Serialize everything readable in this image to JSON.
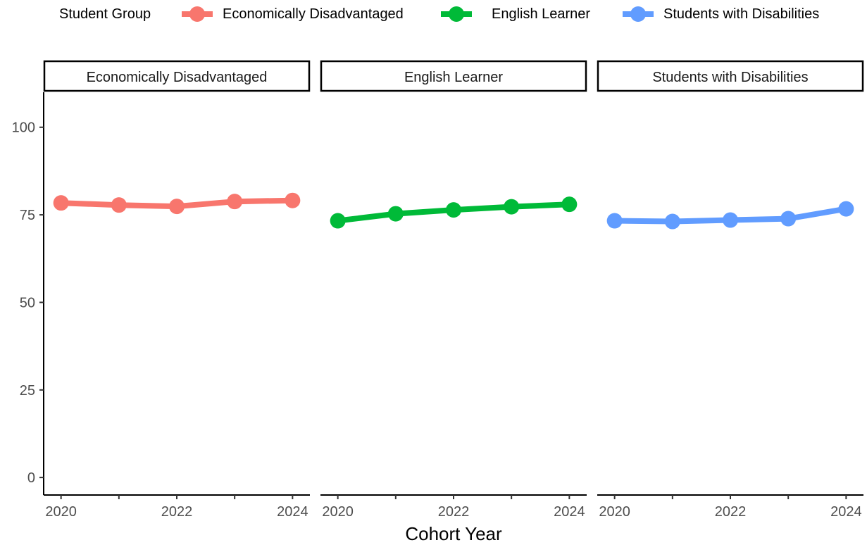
{
  "chart_data": {
    "type": "line",
    "facet_by": "Student Group",
    "legend": {
      "title": "Student Group",
      "position": "top",
      "entries": [
        {
          "label": "Economically Disadvantaged",
          "color": "#F8766D"
        },
        {
          "label": "English Learner",
          "color": "#00BA38"
        },
        {
          "label": "Students with Disabilities",
          "color": "#619CFF"
        }
      ]
    },
    "xlabel": "Cohort Year",
    "ylabel": "",
    "ylim": [
      -5,
      110
    ],
    "xlim": [
      2019.7,
      2024.3
    ],
    "y_ticks": [
      "0",
      "25",
      "50",
      "75",
      "100"
    ],
    "x_ticks": [
      2020,
      2021,
      2022,
      2023,
      2024
    ],
    "x_tick_labels": [
      "2020",
      "",
      "2022",
      "",
      "2024"
    ],
    "grid": false,
    "panels": [
      {
        "title": "Economically Disadvantaged",
        "color": "#F8766D",
        "x": [
          2020,
          2021,
          2022,
          2023,
          2024
        ],
        "y": [
          78.4,
          77.8,
          77.4,
          78.8,
          79.1
        ]
      },
      {
        "title": "English Learner",
        "color": "#00BA38",
        "x": [
          2020,
          2021,
          2022,
          2023,
          2024
        ],
        "y": [
          73.3,
          75.3,
          76.4,
          77.3,
          78.0
        ]
      },
      {
        "title": "Students with Disabilities",
        "color": "#619CFF",
        "x": [
          2020,
          2021,
          2022,
          2023,
          2024
        ],
        "y": [
          73.3,
          73.1,
          73.5,
          73.9,
          76.7
        ]
      }
    ]
  }
}
